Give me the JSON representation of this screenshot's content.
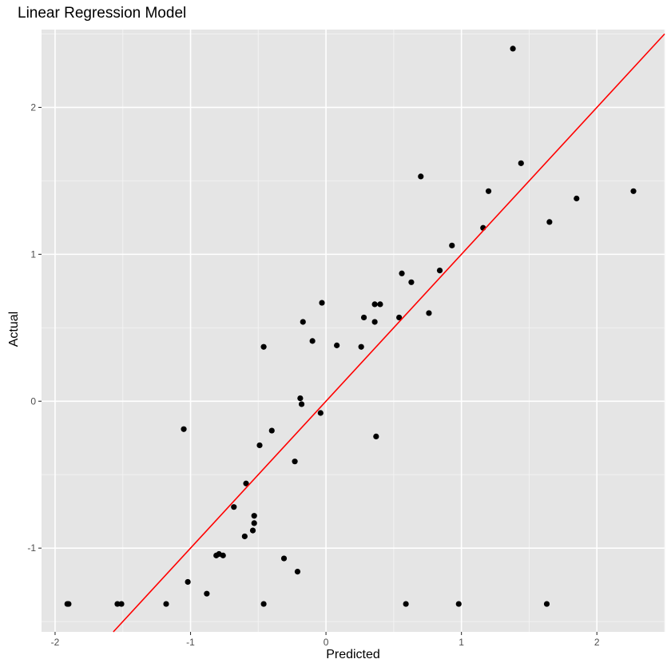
{
  "chart_data": {
    "type": "scatter",
    "title": "Linear Regression Model",
    "xlabel": "Predicted",
    "ylabel": "Actual",
    "xlim": [
      -2.1,
      2.5
    ],
    "ylim": [
      -1.57,
      2.53
    ],
    "x_ticks": [
      -2,
      -1,
      0,
      1,
      2
    ],
    "y_ticks": [
      -1,
      0,
      1,
      2
    ],
    "x_tick_labels": [
      "-2",
      "-1",
      "0",
      "1",
      "2"
    ],
    "y_tick_labels": [
      "-1",
      "0",
      "1",
      "2"
    ],
    "grid": true,
    "background": "#e5e5e5",
    "point_color": "#000000",
    "line_color": "#ff0000",
    "fit_line": {
      "slope": 1.0,
      "intercept": 0.0
    },
    "points": [
      {
        "x": -1.91,
        "y": -1.38
      },
      {
        "x": -1.9,
        "y": -1.38
      },
      {
        "x": -1.54,
        "y": -1.38
      },
      {
        "x": -1.51,
        "y": -1.38
      },
      {
        "x": -1.18,
        "y": -1.38
      },
      {
        "x": -1.05,
        "y": -0.19
      },
      {
        "x": -1.02,
        "y": -1.23
      },
      {
        "x": -0.88,
        "y": -1.31
      },
      {
        "x": -0.81,
        "y": -1.05
      },
      {
        "x": -0.79,
        "y": -1.04
      },
      {
        "x": -0.76,
        "y": -1.05
      },
      {
        "x": -0.68,
        "y": -0.72
      },
      {
        "x": -0.6,
        "y": -0.92
      },
      {
        "x": -0.59,
        "y": -0.56
      },
      {
        "x": -0.54,
        "y": -0.88
      },
      {
        "x": -0.53,
        "y": -0.83
      },
      {
        "x": -0.53,
        "y": -0.78
      },
      {
        "x": -0.49,
        "y": -0.3
      },
      {
        "x": -0.46,
        "y": 0.37
      },
      {
        "x": -0.46,
        "y": -1.38
      },
      {
        "x": -0.4,
        "y": -0.2
      },
      {
        "x": -0.31,
        "y": -1.07
      },
      {
        "x": -0.23,
        "y": -0.41
      },
      {
        "x": -0.21,
        "y": -1.16
      },
      {
        "x": -0.19,
        "y": 0.02
      },
      {
        "x": -0.18,
        "y": -0.02
      },
      {
        "x": -0.17,
        "y": 0.54
      },
      {
        "x": -0.1,
        "y": 0.41
      },
      {
        "x": -0.04,
        "y": -0.08
      },
      {
        "x": -0.03,
        "y": 0.67
      },
      {
        "x": 0.08,
        "y": 0.38
      },
      {
        "x": 0.26,
        "y": 0.37
      },
      {
        "x": 0.28,
        "y": 0.57
      },
      {
        "x": 0.36,
        "y": 0.66
      },
      {
        "x": 0.36,
        "y": 0.54
      },
      {
        "x": 0.37,
        "y": -0.24
      },
      {
        "x": 0.4,
        "y": 0.66
      },
      {
        "x": 0.54,
        "y": 0.57
      },
      {
        "x": 0.56,
        "y": 0.87
      },
      {
        "x": 0.59,
        "y": -1.38
      },
      {
        "x": 0.63,
        "y": 0.81
      },
      {
        "x": 0.7,
        "y": 1.53
      },
      {
        "x": 0.76,
        "y": 0.6
      },
      {
        "x": 0.84,
        "y": 0.89
      },
      {
        "x": 0.93,
        "y": 1.06
      },
      {
        "x": 0.98,
        "y": -1.38
      },
      {
        "x": 1.16,
        "y": 1.18
      },
      {
        "x": 1.2,
        "y": 1.43
      },
      {
        "x": 1.38,
        "y": 2.4
      },
      {
        "x": 1.44,
        "y": 1.62
      },
      {
        "x": 1.63,
        "y": -1.38
      },
      {
        "x": 1.65,
        "y": 1.22
      },
      {
        "x": 1.85,
        "y": 1.38
      },
      {
        "x": 2.27,
        "y": 1.43
      }
    ]
  }
}
